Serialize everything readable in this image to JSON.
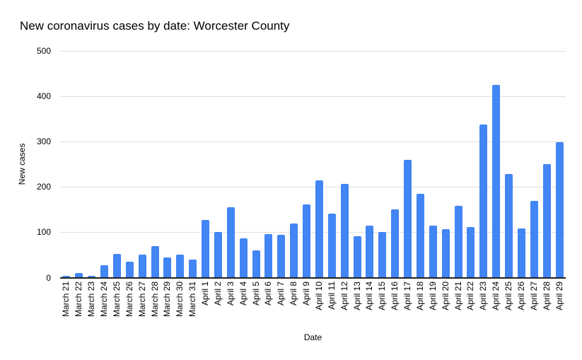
{
  "chart_data": {
    "type": "bar",
    "title": "New coronavirus cases by date: Worcester County",
    "xlabel": "Date",
    "ylabel": "New cases",
    "ylim": [
      0,
      500
    ],
    "yticks": [
      0,
      100,
      200,
      300,
      400,
      500
    ],
    "grid": true,
    "legend": "none",
    "categories": [
      "March 21",
      "March 22",
      "March 23",
      "March 24",
      "March 25",
      "March 26",
      "March 27",
      "March 28",
      "March 29",
      "March 30",
      "March 31",
      "April 1",
      "April 2",
      "April 3",
      "April 4",
      "April 5",
      "April 6",
      "April 7",
      "April 8",
      "April 9",
      "April 10",
      "April 11",
      "April 12",
      "April 13",
      "April 14",
      "April 15",
      "April 16",
      "April 17",
      "April 18",
      "April 19",
      "April 20",
      "April 21",
      "April 22",
      "April 23",
      "April 24",
      "April 25",
      "April 26",
      "April 27",
      "April 28",
      "April 29"
    ],
    "values": [
      4,
      10,
      4,
      28,
      52,
      35,
      50,
      69,
      44,
      50,
      40,
      127,
      100,
      156,
      86,
      60,
      96,
      94,
      120,
      161,
      215,
      141,
      206,
      92,
      115,
      101,
      150,
      260,
      185,
      115,
      107,
      158,
      112,
      338,
      425,
      229,
      108,
      170,
      251,
      299
    ]
  },
  "colors": {
    "bar": "#4285F4",
    "gridline": "#e0e0e0",
    "axis_line": "#212121",
    "text": "#000000",
    "background": "#ffffff"
  }
}
